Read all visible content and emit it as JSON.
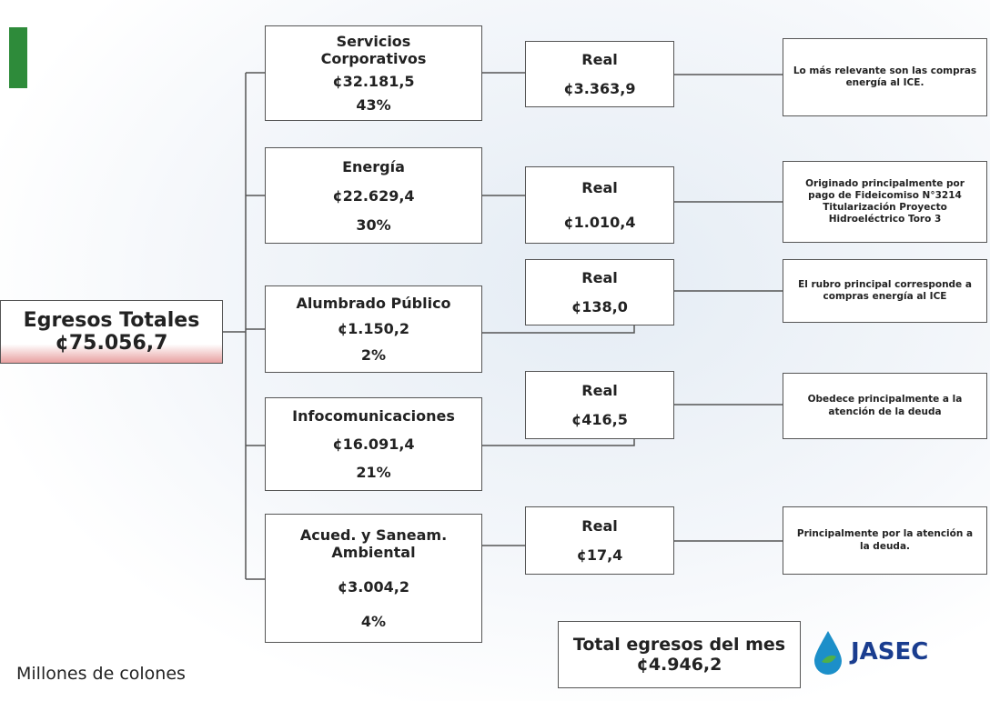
{
  "root": {
    "title": "Egresos Totales",
    "amount": "¢75.056,7"
  },
  "branches": [
    {
      "name": "Servicios Corporativos",
      "amount": "¢32.181,5",
      "percent": "43%",
      "real_label": "Real",
      "real_amount": "¢3.363,9",
      "note": "Lo más relevante son las compras energía al ICE."
    },
    {
      "name": "Energía",
      "amount": "¢22.629,4",
      "percent": "30%",
      "real_label": "Real",
      "real_amount": "¢1.010,4",
      "note": "Originado principalmente por pago de Fideicomiso N°3214 Titularización Proyecto Hidroeléctrico Toro 3"
    },
    {
      "name": "Alumbrado Público",
      "amount": "¢1.150,2",
      "percent": "2%",
      "real_label": "Real",
      "real_amount": "¢138,0",
      "note": "El rubro principal corresponde a compras energía al ICE"
    },
    {
      "name": "Infocomunicaciones",
      "amount": "¢16.091,4",
      "percent": "21%",
      "real_label": "Real",
      "real_amount": "¢416,5",
      "note": "Obedece principalmente a la atención de la deuda"
    },
    {
      "name": "Acued. y Saneam. Ambiental",
      "amount": "¢3.004,2",
      "percent": "4%",
      "real_label": "Real",
      "real_amount": "¢17,4",
      "note": "Principalmente por la atención a la deuda."
    }
  ],
  "total": {
    "label": "Total egresos del mes",
    "amount": "¢4.946,2"
  },
  "footer": "Millones de colones",
  "logo": "JASEC"
}
